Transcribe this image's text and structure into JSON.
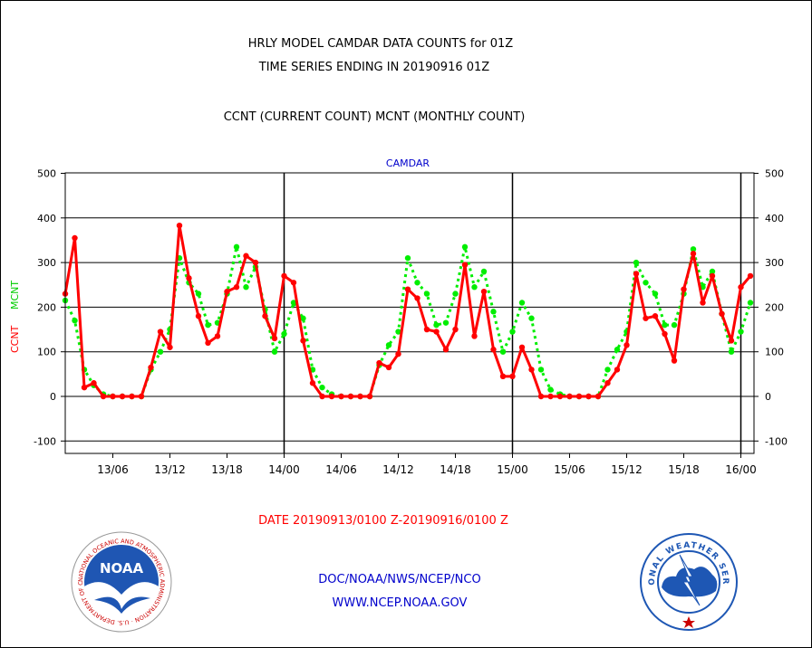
{
  "header": {
    "title_line1": "HRLY MODEL CAMDAR DATA COUNTS for 01Z",
    "title_line2": "TIME SERIES ENDING IN 20190916 01Z",
    "subtitle": "CCNT (CURRENT COUNT) MCNT (MONTHLY COUNT)"
  },
  "footer": {
    "date_range": "DATE 20190913/0100 Z-20190916/0100 Z",
    "org_line": "DOC/NOAA/NWS/NCEP/NCO",
    "url_line": "WWW.NCEP.NOAA.GOV"
  },
  "logos": {
    "noaa_text": "NOAA",
    "noaa_ring": "NATIONAL OCEANIC AND ATMOSPHERIC ADMINISTRATION · U.S. DEPARTMENT OF COMMERCE",
    "nws_ring": "NATIONAL WEATHER SERVICE"
  },
  "chart_data": {
    "type": "line",
    "title": "CAMDAR",
    "ylabel_ccnt": "CCNT",
    "ylabel_mcnt": "MCNT",
    "ylim": [
      -130,
      500
    ],
    "yticks": [
      -100,
      0,
      100,
      200,
      300,
      400,
      500
    ],
    "xlim_hours": [
      0,
      72
    ],
    "xticks": [
      {
        "label": "13/06",
        "hour": 5
      },
      {
        "label": "13/12",
        "hour": 11
      },
      {
        "label": "13/18",
        "hour": 17
      },
      {
        "label": "14/00",
        "hour": 23
      },
      {
        "label": "14/06",
        "hour": 29
      },
      {
        "label": "14/12",
        "hour": 35
      },
      {
        "label": "14/18",
        "hour": 41
      },
      {
        "label": "15/00",
        "hour": 47
      },
      {
        "label": "15/06",
        "hour": 53
      },
      {
        "label": "15/12",
        "hour": 59
      },
      {
        "label": "15/18",
        "hour": 65
      },
      {
        "label": "16/00",
        "hour": 71
      }
    ],
    "day_boundaries_hours": [
      23,
      47,
      71
    ],
    "grid": true,
    "series": [
      {
        "name": "CCNT",
        "color": "#ff0000",
        "style": "solid",
        "values": [
          230,
          355,
          20,
          30,
          0,
          0,
          0,
          0,
          0,
          65,
          145,
          110,
          383,
          265,
          180,
          120,
          135,
          235,
          245,
          315,
          300,
          180,
          130,
          270,
          255,
          125,
          30,
          0,
          0,
          0,
          0,
          0,
          0,
          75,
          65,
          95,
          240,
          220,
          150,
          145,
          105,
          150,
          295,
          135,
          235,
          105,
          45,
          45,
          110,
          60,
          0,
          0,
          0,
          0,
          0,
          0,
          0,
          30,
          60,
          115,
          275,
          175,
          180,
          140,
          80,
          240,
          320,
          210,
          270,
          185,
          125,
          245,
          270
        ]
      },
      {
        "name": "MCNT",
        "color": "#00ee00",
        "style": "dotted",
        "values": [
          215,
          170,
          60,
          25,
          5,
          0,
          0,
          0,
          0,
          60,
          100,
          150,
          310,
          255,
          230,
          160,
          165,
          230,
          335,
          245,
          290,
          195,
          100,
          140,
          210,
          175,
          60,
          20,
          5,
          0,
          0,
          0,
          0,
          70,
          115,
          145,
          310,
          255,
          230,
          160,
          165,
          230,
          335,
          245,
          280,
          190,
          100,
          145,
          210,
          175,
          60,
          15,
          5,
          0,
          0,
          0,
          0,
          60,
          105,
          145,
          300,
          255,
          230,
          160,
          160,
          230,
          330,
          245,
          280,
          185,
          100,
          145,
          210
        ]
      }
    ]
  },
  "colors": {
    "title": "#000000",
    "camdar_label": "#0000cc",
    "date_text": "#ff0000",
    "footer_text": "#0000cc",
    "ccnt": "#ff0000",
    "mcnt": "#00ee00",
    "noaa_blue": "#1f56b3",
    "nws_blue": "#1e57b4",
    "ring_text": "#cc0000"
  }
}
